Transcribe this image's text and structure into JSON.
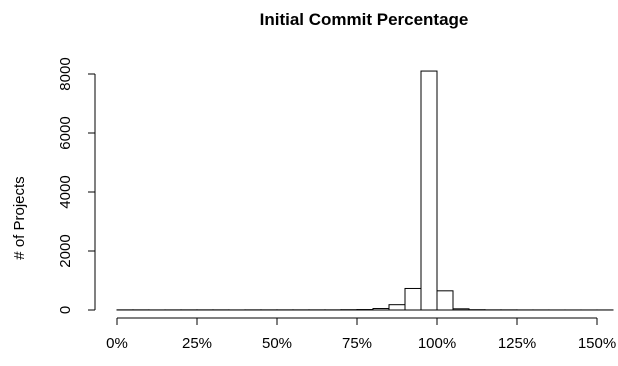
{
  "chart_data": {
    "type": "bar",
    "title": "Initial Commit Percentage",
    "xlabel": "",
    "ylabel": "# of Projects",
    "x_ticks": [
      "0%",
      "25%",
      "50%",
      "75%",
      "100%",
      "125%",
      "150%"
    ],
    "x_tick_values": [
      0,
      25,
      50,
      75,
      100,
      125,
      150
    ],
    "y_ticks": [
      "0",
      "2000",
      "4000",
      "6000",
      "8000"
    ],
    "y_tick_values": [
      0,
      2000,
      4000,
      6000,
      8000
    ],
    "xlim": [
      0,
      150
    ],
    "ylim": [
      0,
      8000
    ],
    "bin_width": 5,
    "bins": [
      {
        "start": 0,
        "end": 5,
        "count": 5
      },
      {
        "start": 5,
        "end": 10,
        "count": 5
      },
      {
        "start": 10,
        "end": 15,
        "count": 3
      },
      {
        "start": 15,
        "end": 20,
        "count": 4
      },
      {
        "start": 20,
        "end": 25,
        "count": 5
      },
      {
        "start": 25,
        "end": 30,
        "count": 5
      },
      {
        "start": 30,
        "end": 35,
        "count": 5
      },
      {
        "start": 35,
        "end": 40,
        "count": 3
      },
      {
        "start": 40,
        "end": 45,
        "count": 5
      },
      {
        "start": 45,
        "end": 50,
        "count": 5
      },
      {
        "start": 50,
        "end": 55,
        "count": 5
      },
      {
        "start": 55,
        "end": 60,
        "count": 5
      },
      {
        "start": 60,
        "end": 65,
        "count": 5
      },
      {
        "start": 65,
        "end": 70,
        "count": 5
      },
      {
        "start": 70,
        "end": 75,
        "count": 10
      },
      {
        "start": 75,
        "end": 80,
        "count": 15
      },
      {
        "start": 80,
        "end": 85,
        "count": 50
      },
      {
        "start": 85,
        "end": 90,
        "count": 180
      },
      {
        "start": 90,
        "end": 95,
        "count": 730
      },
      {
        "start": 95,
        "end": 100,
        "count": 8100
      },
      {
        "start": 100,
        "end": 105,
        "count": 650
      },
      {
        "start": 105,
        "end": 110,
        "count": 40
      },
      {
        "start": 110,
        "end": 115,
        "count": 10
      },
      {
        "start": 115,
        "end": 120,
        "count": 5
      },
      {
        "start": 120,
        "end": 125,
        "count": 5
      },
      {
        "start": 125,
        "end": 130,
        "count": 3
      },
      {
        "start": 130,
        "end": 135,
        "count": 3
      },
      {
        "start": 135,
        "end": 140,
        "count": 2
      },
      {
        "start": 140,
        "end": 145,
        "count": 2
      },
      {
        "start": 145,
        "end": 150,
        "count": 2
      },
      {
        "start": 150,
        "end": 155,
        "count": 2
      }
    ],
    "bar_fill": "#ffffff",
    "bar_stroke": "#000000",
    "grid": false,
    "legend": "none"
  }
}
